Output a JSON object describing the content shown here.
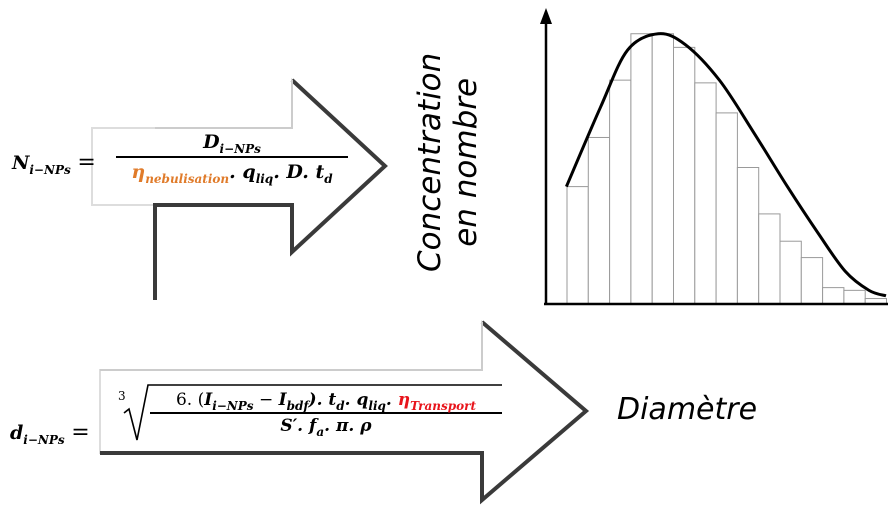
{
  "formula_n": {
    "lhs_var": "N",
    "lhs_sub": "i−NPs",
    "eq": "=",
    "num_var": "D",
    "num_sub": "i−NPs",
    "den_eta": "η",
    "den_eta_sub": "nebulisation",
    "den_dot1": ".",
    "den_q": "q",
    "den_q_sub": "liq",
    "den_rest": ". D. t",
    "den_t_sub": "d"
  },
  "formula_d": {
    "lhs_var": "d",
    "lhs_sub": "i−NPs",
    "eq": "=",
    "root_index": "3",
    "num_lead": "6. (",
    "num_i1": "I",
    "num_i1_sub": "i−NPs",
    "num_minus": " − ",
    "num_i2": "I",
    "num_i2_sub": "bdf",
    "num_close": "). t",
    "num_t_sub": "d",
    "num_q": ". q",
    "num_q_sub": "liq",
    "num_dot": ". ",
    "num_eta": "η",
    "num_eta_sub": "Transport",
    "den_s": "S′. f",
    "den_f_sub": "a",
    "den_rest": ". π. ρ"
  },
  "labels": {
    "y_line1": "Concentration",
    "y_line2": "en nombre",
    "diametre": "Diamètre"
  },
  "colors": {
    "nebulisation": "#e07b2a",
    "transport": "#e8141b"
  },
  "chart_data": {
    "type": "bar",
    "bin_heights": [
      0.43,
      0.61,
      0.82,
      0.99,
      0.99,
      0.94,
      0.81,
      0.7,
      0.5,
      0.33,
      0.23,
      0.17,
      0.06,
      0.05,
      0.02,
      0.0
    ],
    "curve": [
      [
        0.06,
        0.43
      ],
      [
        0.16,
        0.72
      ],
      [
        0.24,
        0.93
      ],
      [
        0.33,
        0.99
      ],
      [
        0.41,
        0.95
      ],
      [
        0.51,
        0.82
      ],
      [
        0.61,
        0.63
      ],
      [
        0.71,
        0.43
      ],
      [
        0.8,
        0.26
      ],
      [
        0.88,
        0.12
      ],
      [
        0.95,
        0.05
      ],
      [
        1.0,
        0.03
      ]
    ],
    "xlim": [
      0,
      1
    ],
    "ylim": [
      0,
      1
    ]
  }
}
